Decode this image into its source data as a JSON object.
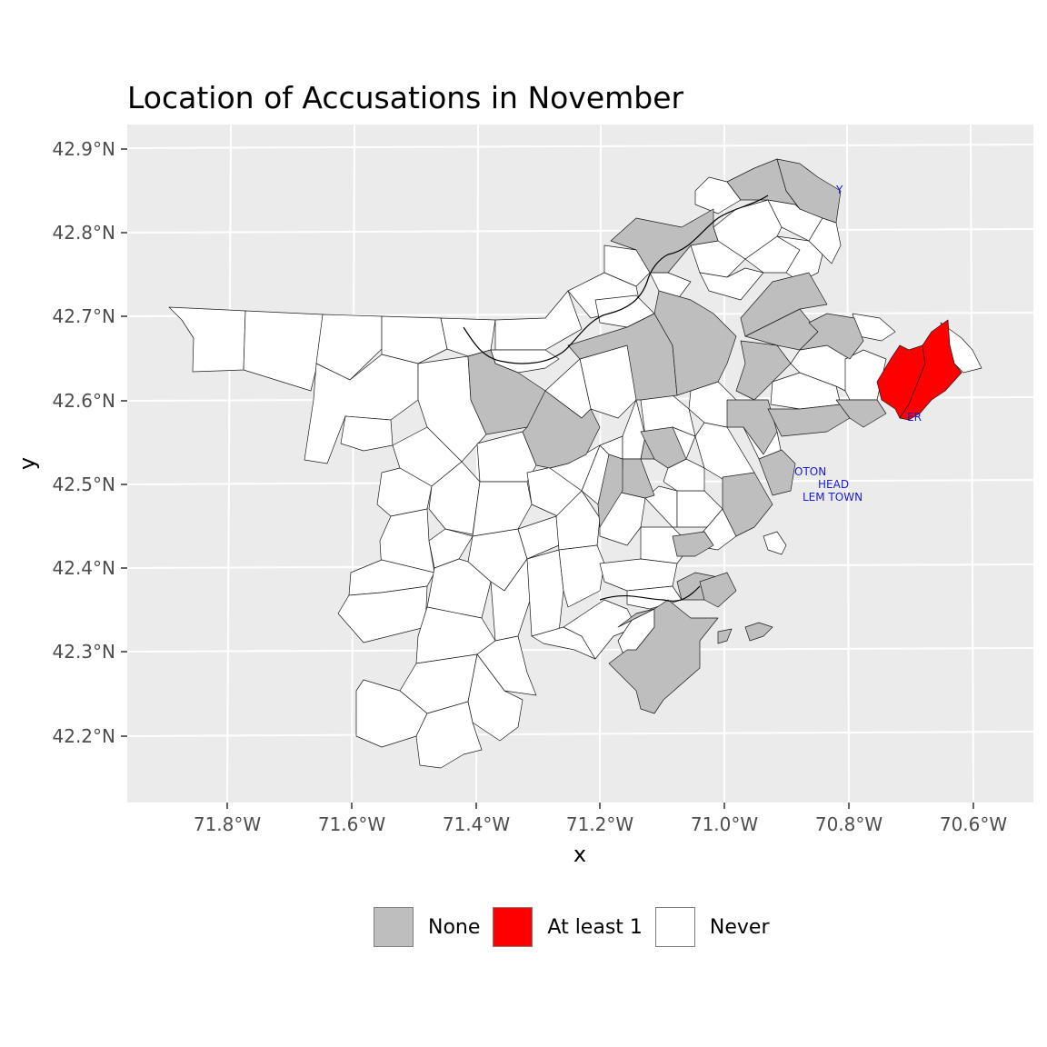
{
  "title": "Location of Accusations in November",
  "axes": {
    "xlabel": "x",
    "ylabel": "y",
    "x_ticks": [
      {
        "lon": -71.8,
        "label": "71.8°W"
      },
      {
        "lon": -71.6,
        "label": "71.6°W"
      },
      {
        "lon": -71.4,
        "label": "71.4°W"
      },
      {
        "lon": -71.2,
        "label": "71.2°W"
      },
      {
        "lon": -71.0,
        "label": "71.0°W"
      },
      {
        "lon": -70.8,
        "label": "70.8°W"
      },
      {
        "lon": -70.6,
        "label": "70.6°W"
      }
    ],
    "y_ticks": [
      {
        "lat": 42.9,
        "label": "42.9°N"
      },
      {
        "lat": 42.8,
        "label": "42.8°N"
      },
      {
        "lat": 42.7,
        "label": "42.7°N"
      },
      {
        "lat": 42.6,
        "label": "42.6°N"
      },
      {
        "lat": 42.5,
        "label": "42.5°N"
      },
      {
        "lat": 42.4,
        "label": "42.4°N"
      },
      {
        "lat": 42.3,
        "label": "42.3°N"
      },
      {
        "lat": 42.2,
        "label": "42.2°N"
      }
    ]
  },
  "town_labels": [
    {
      "text": "Y"
    },
    {
      "text": "ER"
    },
    {
      "text": "OTON"
    },
    {
      "text": "HEAD"
    },
    {
      "text": "LEM TOWN"
    }
  ],
  "legend": {
    "position": "bottom",
    "items": [
      {
        "label": "None",
        "color": "#bebebe"
      },
      {
        "label": "At least 1",
        "color": "#ff0000"
      },
      {
        "label": "Never",
        "color": "#ffffff"
      }
    ]
  },
  "colors": {
    "panel": "#ebebeb",
    "grid": "#ffffff",
    "none": "#bebebe",
    "at_least_1": "#ff0000",
    "never": "#ffffff",
    "label_text": "#1a1ad9"
  }
}
